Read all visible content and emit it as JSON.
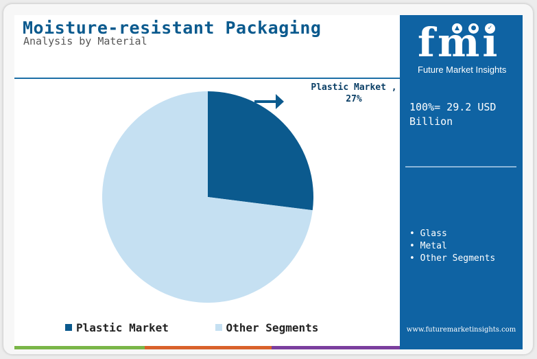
{
  "header": {
    "title": "Moisture-resistant Packaging",
    "subtitle": "Analysis by Material"
  },
  "chart_data": {
    "type": "pie",
    "title": "Moisture-resistant Packaging",
    "subtitle": "Analysis by Material",
    "slices": [
      {
        "name": "Plastic Market",
        "value": 27,
        "color": "#0b5a8e"
      },
      {
        "name": "Other Segments",
        "value": 73,
        "color": "#c5e0f2"
      }
    ],
    "slice_label": "Plastic Market , 27%",
    "legend": [
      "Plastic Market",
      "Other Segments"
    ],
    "legend_placement": "bottom"
  },
  "panel": {
    "logo_letters": "fmi",
    "logo_text": "Future Market Insights",
    "total_text": "100%= 29.2 USD Billion",
    "segments": [
      "Glass",
      "Metal",
      "Other Segments"
    ],
    "website": "www.futuremarketinsights.com"
  },
  "colors": {
    "accent": "#0f63a3",
    "title": "#0b5a8e",
    "bar_green": "#7ab648",
    "bar_orange": "#d9622b",
    "bar_purple": "#7b3f9e"
  }
}
